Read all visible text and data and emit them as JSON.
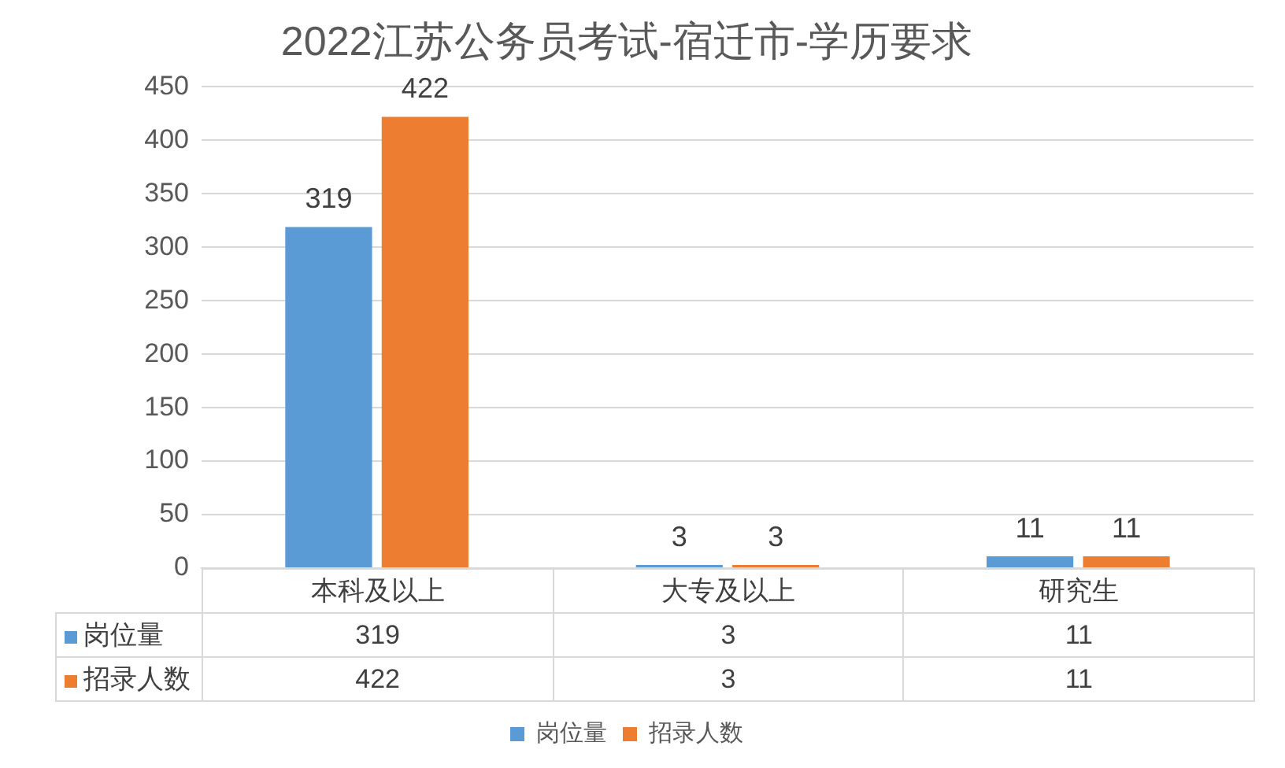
{
  "chart_data": {
    "type": "bar",
    "title": "2022江苏公务员考试-宿迁市-学历要求",
    "categories": [
      "本科及以上",
      "大专及以上",
      "研究生"
    ],
    "series": [
      {
        "name": "岗位量",
        "color": "#5b9bd5",
        "values": [
          319,
          3,
          11
        ]
      },
      {
        "name": "招录人数",
        "color": "#ed7d31",
        "values": [
          422,
          3,
          11
        ]
      }
    ],
    "ylim": [
      0,
      450
    ],
    "yticks": [
      0,
      50,
      100,
      150,
      200,
      250,
      300,
      350,
      400,
      450
    ],
    "annotations": [
      "319",
      "3",
      "11",
      "422",
      "3",
      "11"
    ],
    "grid": "y",
    "legend": "bottom",
    "data_labels": true
  }
}
